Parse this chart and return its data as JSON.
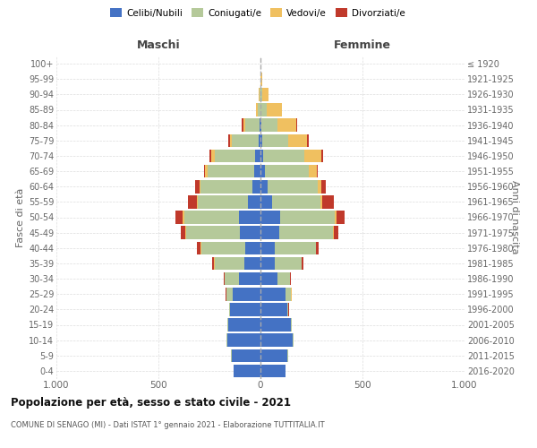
{
  "age_groups": [
    "0-4",
    "5-9",
    "10-14",
    "15-19",
    "20-24",
    "25-29",
    "30-34",
    "35-39",
    "40-44",
    "45-49",
    "50-54",
    "55-59",
    "60-64",
    "65-69",
    "70-74",
    "75-79",
    "80-84",
    "85-89",
    "90-94",
    "95-99",
    "100+"
  ],
  "birth_years": [
    "2016-2020",
    "2011-2015",
    "2006-2010",
    "2001-2005",
    "1996-2000",
    "1991-1995",
    "1986-1990",
    "1981-1985",
    "1976-1980",
    "1971-1975",
    "1966-1970",
    "1961-1965",
    "1956-1960",
    "1951-1955",
    "1946-1950",
    "1941-1945",
    "1936-1940",
    "1931-1935",
    "1926-1930",
    "1921-1925",
    "≤ 1920"
  ],
  "maschi": {
    "celibi": [
      130,
      142,
      162,
      158,
      148,
      135,
      105,
      80,
      75,
      100,
      105,
      60,
      40,
      30,
      25,
      10,
      5,
      0,
      0,
      0,
      0
    ],
    "coniugati": [
      2,
      3,
      5,
      5,
      5,
      30,
      70,
      145,
      215,
      265,
      270,
      245,
      255,
      230,
      200,
      130,
      70,
      15,
      5,
      2,
      0
    ],
    "vedovi": [
      0,
      0,
      0,
      0,
      0,
      2,
      2,
      2,
      2,
      3,
      5,
      5,
      5,
      10,
      15,
      10,
      10,
      5,
      2,
      0,
      0
    ],
    "divorziati": [
      0,
      0,
      0,
      0,
      2,
      5,
      5,
      12,
      18,
      22,
      35,
      45,
      20,
      5,
      10,
      10,
      5,
      0,
      0,
      0,
      0
    ]
  },
  "femmine": {
    "nubili": [
      122,
      132,
      158,
      148,
      133,
      122,
      82,
      68,
      68,
      92,
      98,
      58,
      35,
      20,
      15,
      8,
      5,
      0,
      0,
      0,
      0
    ],
    "coniugate": [
      2,
      3,
      4,
      4,
      5,
      28,
      62,
      132,
      202,
      262,
      265,
      235,
      245,
      215,
      200,
      130,
      80,
      30,
      8,
      2,
      0
    ],
    "vedove": [
      0,
      0,
      0,
      0,
      0,
      2,
      2,
      2,
      3,
      5,
      8,
      10,
      20,
      42,
      82,
      92,
      92,
      75,
      30,
      5,
      0
    ],
    "divorziate": [
      0,
      0,
      0,
      0,
      2,
      3,
      5,
      8,
      12,
      22,
      42,
      55,
      20,
      5,
      10,
      5,
      5,
      0,
      0,
      0,
      0
    ]
  },
  "colors": {
    "celibi_nubili": "#4472c4",
    "coniugati": "#b5c99a",
    "vedovi": "#f0c060",
    "divorziati": "#c0392b"
  },
  "title": "Popolazione per età, sesso e stato civile - 2021",
  "subtitle": "COMUNE DI SENAGO (MI) - Dati ISTAT 1° gennaio 2021 - Elaborazione TUTTITALIA.IT",
  "xlabel_left": "Maschi",
  "xlabel_right": "Femmine",
  "ylabel_left": "Fasce di età",
  "ylabel_right": "Anni di nascita",
  "xlim": 1000,
  "legend_labels": [
    "Celibi/Nubili",
    "Coniugati/e",
    "Vedovi/e",
    "Divorziati/e"
  ],
  "background_color": "#ffffff",
  "grid_color": "#cccccc"
}
